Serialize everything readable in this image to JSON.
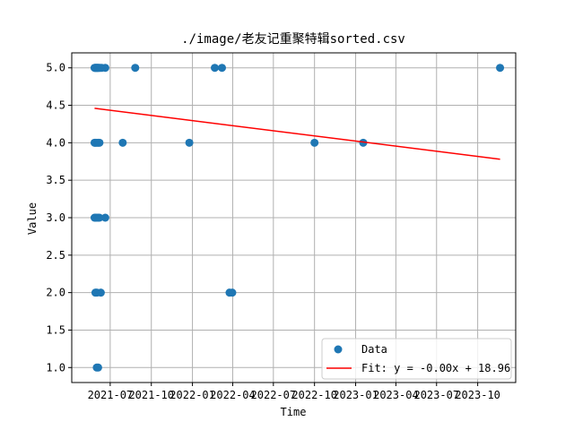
{
  "chart_data": {
    "type": "scatter",
    "title": "./image/老友记重聚特辑sorted.csv",
    "xlabel": "Time",
    "ylabel": "Value",
    "x_axis_type": "date",
    "xlim": [
      "2021-04-06",
      "2023-12-25"
    ],
    "ylim": [
      0.8,
      5.2
    ],
    "x_ticks": [
      "2021-07-01",
      "2021-10-01",
      "2022-01-01",
      "2022-04-01",
      "2022-07-01",
      "2022-10-01",
      "2023-01-01",
      "2023-04-01",
      "2023-07-01",
      "2023-10-01"
    ],
    "x_tick_labels": [
      "2021-07",
      "2021-10",
      "2022-01",
      "2022-04",
      "2022-07",
      "2022-10",
      "2023-01",
      "2023-04",
      "2023-07",
      "2023-10"
    ],
    "y_ticks": [
      1.0,
      1.5,
      2.0,
      2.5,
      3.0,
      3.5,
      4.0,
      4.5,
      5.0
    ],
    "y_tick_labels": [
      "1.0",
      "1.5",
      "2.0",
      "2.5",
      "3.0",
      "3.5",
      "4.0",
      "4.5",
      "5.0"
    ],
    "grid": true,
    "legend_position": "lower-right",
    "series": [
      {
        "name": "Data",
        "kind": "scatter",
        "color": "#1f77b4",
        "points": [
          [
            "2021-05-27",
            5
          ],
          [
            "2021-05-28",
            5
          ],
          [
            "2021-05-29",
            5
          ],
          [
            "2021-05-30",
            5
          ],
          [
            "2021-05-31",
            5
          ],
          [
            "2021-06-01",
            5
          ],
          [
            "2021-06-02",
            5
          ],
          [
            "2021-06-03",
            5
          ],
          [
            "2021-06-04",
            5
          ],
          [
            "2021-06-05",
            5
          ],
          [
            "2021-06-07",
            5
          ],
          [
            "2021-06-09",
            5
          ],
          [
            "2021-06-12",
            5
          ],
          [
            "2021-06-20",
            5
          ],
          [
            "2021-08-26",
            5
          ],
          [
            "2022-02-20",
            5
          ],
          [
            "2022-03-08",
            5
          ],
          [
            "2023-11-20",
            5
          ],
          [
            "2021-05-27",
            4
          ],
          [
            "2021-05-29",
            4
          ],
          [
            "2021-06-01",
            4
          ],
          [
            "2021-06-04",
            4
          ],
          [
            "2021-06-07",
            4
          ],
          [
            "2021-07-29",
            4
          ],
          [
            "2021-12-25",
            4
          ],
          [
            "2022-10-01",
            4
          ],
          [
            "2023-01-18",
            4
          ],
          [
            "2021-05-27",
            3
          ],
          [
            "2021-05-29",
            3
          ],
          [
            "2021-06-01",
            3
          ],
          [
            "2021-06-04",
            3
          ],
          [
            "2021-06-07",
            3
          ],
          [
            "2021-06-20",
            3
          ],
          [
            "2021-05-29",
            2
          ],
          [
            "2021-06-01",
            2
          ],
          [
            "2021-06-10",
            2
          ],
          [
            "2022-03-25",
            2
          ],
          [
            "2022-03-31",
            2
          ],
          [
            "2021-06-01",
            1
          ],
          [
            "2021-06-04",
            1
          ]
        ]
      },
      {
        "name": "Fit: y = -0.00x + 18.96",
        "kind": "line",
        "color": "#ff0000",
        "points": [
          [
            "2021-05-27",
            4.46
          ],
          [
            "2023-11-20",
            3.78
          ]
        ]
      }
    ]
  }
}
